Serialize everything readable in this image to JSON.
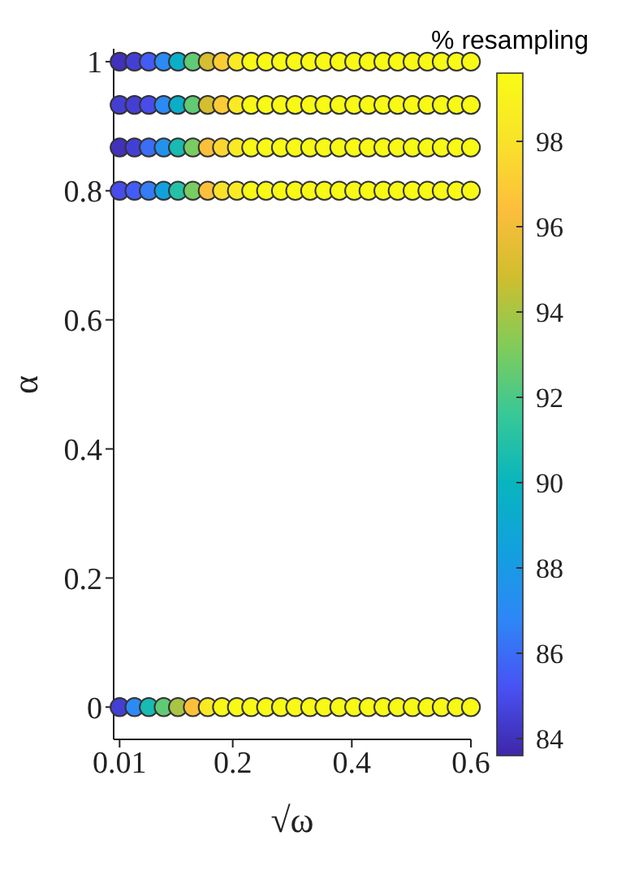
{
  "chart_data": {
    "type": "scatter",
    "xlabel": "√ω",
    "ylabel": "α",
    "clabel": "% resampling",
    "marker": "circle",
    "x": [
      0.01,
      0.035,
      0.059,
      0.084,
      0.108,
      0.133,
      0.158,
      0.182,
      0.207,
      0.231,
      0.256,
      0.281,
      0.305,
      0.33,
      0.354,
      0.379,
      0.404,
      0.428,
      0.453,
      0.477,
      0.502,
      0.527,
      0.551,
      0.576,
      0.6
    ],
    "xlim": [
      0,
      0.6
    ],
    "xticks": [
      0.01,
      0.2,
      0.4,
      0.6
    ],
    "ylim": [
      -0.05,
      1.02
    ],
    "yticks": [
      0,
      0.2,
      0.4,
      0.6,
      0.8,
      1
    ],
    "clim": [
      83.6,
      99.6
    ],
    "cticks": [
      84,
      86,
      88,
      90,
      92,
      94,
      96,
      98
    ],
    "series": [
      {
        "values": [
          1,
          1,
          1,
          1,
          1,
          1,
          1,
          1,
          1,
          1,
          1,
          1,
          1,
          1,
          1,
          1,
          1,
          1,
          1,
          1,
          1,
          1,
          1,
          1,
          1
        ],
        "colors": [
          "#4131bb",
          "#443fd3",
          "#435cf5",
          "#2b8af4",
          "#0baec8",
          "#61ca74",
          "#d5be30",
          "#fccc35",
          "#f9ea23",
          "#f9f916",
          "#f9f916",
          "#f9f916",
          "#f9f916",
          "#f9f916",
          "#f9f916",
          "#f9f916",
          "#f9f916",
          "#f9f916",
          "#f9f916",
          "#f9f916",
          "#f9f916",
          "#f9f916",
          "#f9f916",
          "#f9f916",
          "#f9f916"
        ]
      },
      {
        "values": [
          0.933,
          0.933,
          0.933,
          0.933,
          0.933,
          0.933,
          0.933,
          0.933,
          0.933,
          0.933,
          0.933,
          0.933,
          0.933,
          0.933,
          0.933,
          0.933,
          0.933,
          0.933,
          0.933,
          0.933,
          0.933,
          0.933,
          0.933,
          0.933,
          0.933
        ],
        "colors": [
          "#443fd3",
          "#443fd3",
          "#474ceb",
          "#2b8af4",
          "#0baec8",
          "#61ca74",
          "#d5be30",
          "#fccc35",
          "#f9ea23",
          "#f9f916",
          "#f9f916",
          "#f9f916",
          "#f9f916",
          "#f9f916",
          "#f9f916",
          "#f9f916",
          "#f9f916",
          "#f9f916",
          "#f9f916",
          "#f9f916",
          "#f9f916",
          "#f9f916",
          "#f9f916",
          "#f9f916",
          "#f9f916"
        ]
      },
      {
        "values": [
          0.867,
          0.867,
          0.867,
          0.867,
          0.867,
          0.867,
          0.867,
          0.867,
          0.867,
          0.867,
          0.867,
          0.867,
          0.867,
          0.867,
          0.867,
          0.867,
          0.867,
          0.867,
          0.867,
          0.867,
          0.867,
          0.867,
          0.867,
          0.867,
          0.867
        ],
        "colors": [
          "#4131bb",
          "#443fd3",
          "#3b6df6",
          "#2292ec",
          "#17bbb2",
          "#78cc61",
          "#fdc03b",
          "#fcd730",
          "#f9ea23",
          "#f9f916",
          "#f9f916",
          "#f9f916",
          "#f9f916",
          "#f9f916",
          "#f9f916",
          "#f9f916",
          "#f9f916",
          "#f9f916",
          "#f9f916",
          "#f9f916",
          "#f9f916",
          "#f9f916",
          "#f9f916",
          "#f9f916",
          "#f9f916"
        ]
      },
      {
        "values": [
          0.8,
          0.8,
          0.8,
          0.8,
          0.8,
          0.8,
          0.8,
          0.8,
          0.8,
          0.8,
          0.8,
          0.8,
          0.8,
          0.8,
          0.8,
          0.8,
          0.8,
          0.8,
          0.8,
          0.8,
          0.8,
          0.8,
          0.8,
          0.8,
          0.8
        ],
        "colors": [
          "#474ceb",
          "#435cf5",
          "#337df6",
          "#11a1dd",
          "#25c1a6",
          "#78cc61",
          "#fdc03b",
          "#f9e22a",
          "#f9ea23",
          "#f9f916",
          "#f9f916",
          "#f9f916",
          "#f9f916",
          "#f9f916",
          "#f9f916",
          "#f9f916",
          "#f9f916",
          "#f9f916",
          "#f9f916",
          "#f9f916",
          "#f9f916",
          "#f9f916",
          "#f9f916",
          "#f9f916",
          "#f9f916"
        ]
      },
      {
        "values": [
          0,
          0,
          0,
          0,
          0,
          0,
          0,
          0,
          0,
          0,
          0,
          0,
          0,
          0,
          0,
          0,
          0,
          0,
          0,
          0,
          0,
          0,
          0,
          0,
          0
        ],
        "colors": [
          "#443fd3",
          "#2b8af4",
          "#17bbb2",
          "#61ca74",
          "#a8c544",
          "#fdc03b",
          "#f9ea23",
          "#f9f916",
          "#f9f916",
          "#f9f916",
          "#f9f916",
          "#f9f916",
          "#f9f916",
          "#f9f916",
          "#f9f916",
          "#f9f916",
          "#f9f916",
          "#f9f916",
          "#f9f916",
          "#f9f916",
          "#f9f916",
          "#f9f916",
          "#f9f916",
          "#f9f916",
          "#f9f916"
        ]
      }
    ]
  }
}
